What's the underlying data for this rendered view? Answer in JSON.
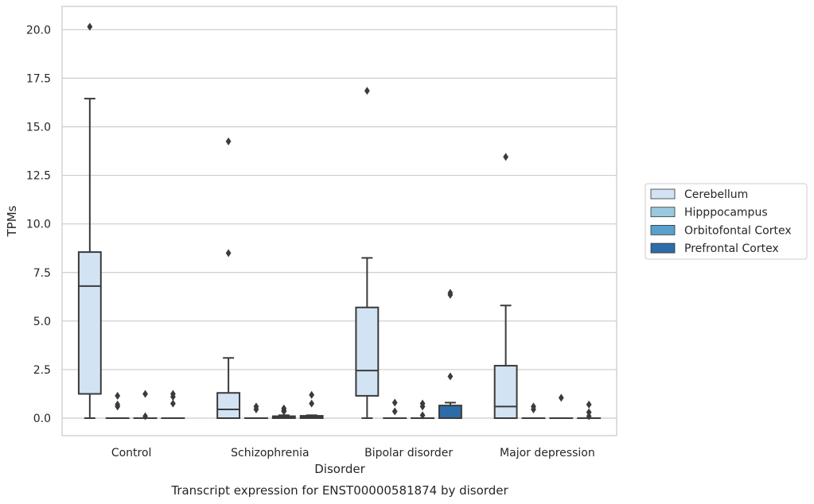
{
  "chart_data": {
    "type": "box",
    "title": "",
    "caption": "Transcript expression for ENST00000581874 by disorder",
    "xlabel": "Disorder",
    "ylabel": "TPMs",
    "ylim": [
      -0.9,
      21.2
    ],
    "yticks": [
      "0.0",
      "2.5",
      "5.0",
      "7.5",
      "10.0",
      "12.5",
      "15.0",
      "17.5",
      "20.0"
    ],
    "ytick_values": [
      0,
      2.5,
      5,
      7.5,
      10,
      12.5,
      15,
      17.5,
      20
    ],
    "categories": [
      "Control",
      "Schizophrenia",
      "Bipolar disorder",
      "Major depression"
    ],
    "grid": "horizontal",
    "legend_placement": "right",
    "series": [
      {
        "name": "Cerebellum",
        "color": "#d2e3f3",
        "boxes": [
          {
            "q1": 1.25,
            "median": 6.8,
            "q3": 8.55,
            "whislo": 0.0,
            "whishi": 16.45,
            "fliers": [
              20.15
            ]
          },
          {
            "q1": 0.0,
            "median": 0.45,
            "q3": 1.3,
            "whislo": 0.0,
            "whishi": 3.1,
            "fliers": [
              14.25,
              8.5
            ]
          },
          {
            "q1": 1.15,
            "median": 2.45,
            "q3": 5.7,
            "whislo": 0.0,
            "whishi": 8.25,
            "fliers": [
              16.85
            ]
          },
          {
            "q1": 0.0,
            "median": 0.6,
            "q3": 2.7,
            "whislo": 0.0,
            "whishi": 5.8,
            "fliers": [
              13.45
            ]
          }
        ]
      },
      {
        "name": "Hipppocampus",
        "color": "#9ac8e0",
        "boxes": [
          {
            "q1": 0.0,
            "median": 0.0,
            "q3": 0.0,
            "whislo": 0.0,
            "whishi": 0.0,
            "fliers": [
              1.15,
              0.7,
              0.6
            ]
          },
          {
            "q1": 0.0,
            "median": 0.0,
            "q3": 0.0,
            "whislo": 0.0,
            "whishi": 0.0,
            "fliers": [
              0.6,
              0.45
            ]
          },
          {
            "q1": 0.0,
            "median": 0.0,
            "q3": 0.0,
            "whislo": 0.0,
            "whishi": 0.0,
            "fliers": [
              0.8,
              0.35
            ]
          },
          {
            "q1": 0.0,
            "median": 0.0,
            "q3": 0.0,
            "whislo": 0.0,
            "whishi": 0.0,
            "fliers": [
              0.6,
              0.45
            ]
          }
        ]
      },
      {
        "name": "Orbitofontal Cortex",
        "color": "#5a9fcd",
        "boxes": [
          {
            "q1": 0.0,
            "median": 0.0,
            "q3": 0.0,
            "whislo": 0.0,
            "whishi": 0.0,
            "fliers": [
              1.25,
              0.1
            ]
          },
          {
            "q1": 0.0,
            "median": 0.05,
            "q3": 0.1,
            "whislo": 0.0,
            "whishi": 0.15,
            "fliers": [
              0.5,
              0.4,
              0.35
            ]
          },
          {
            "q1": 0.0,
            "median": 0.0,
            "q3": 0.0,
            "whislo": 0.0,
            "whishi": 0.0,
            "fliers": [
              0.75,
              0.6,
              0.15
            ]
          },
          {
            "q1": 0.0,
            "median": 0.0,
            "q3": 0.0,
            "whislo": 0.0,
            "whishi": 0.0,
            "fliers": [
              1.05
            ]
          }
        ]
      },
      {
        "name": "Prefrontal Cortex",
        "color": "#2c6ca8",
        "boxes": [
          {
            "q1": 0.0,
            "median": 0.0,
            "q3": 0.0,
            "whislo": 0.0,
            "whishi": 0.0,
            "fliers": [
              1.25,
              1.1,
              0.75
            ]
          },
          {
            "q1": 0.0,
            "median": 0.05,
            "q3": 0.12,
            "whislo": 0.0,
            "whishi": 0.15,
            "fliers": [
              1.2,
              0.75
            ]
          },
          {
            "q1": 0.0,
            "median": 0.0,
            "q3": 0.65,
            "whislo": 0.0,
            "whishi": 0.8,
            "fliers": [
              6.45,
              6.35,
              2.15
            ]
          },
          {
            "q1": 0.0,
            "median": 0.0,
            "q3": 0.0,
            "whislo": 0.0,
            "whishi": 0.0,
            "fliers": [
              0.7,
              0.3,
              0.1
            ]
          }
        ]
      }
    ]
  }
}
